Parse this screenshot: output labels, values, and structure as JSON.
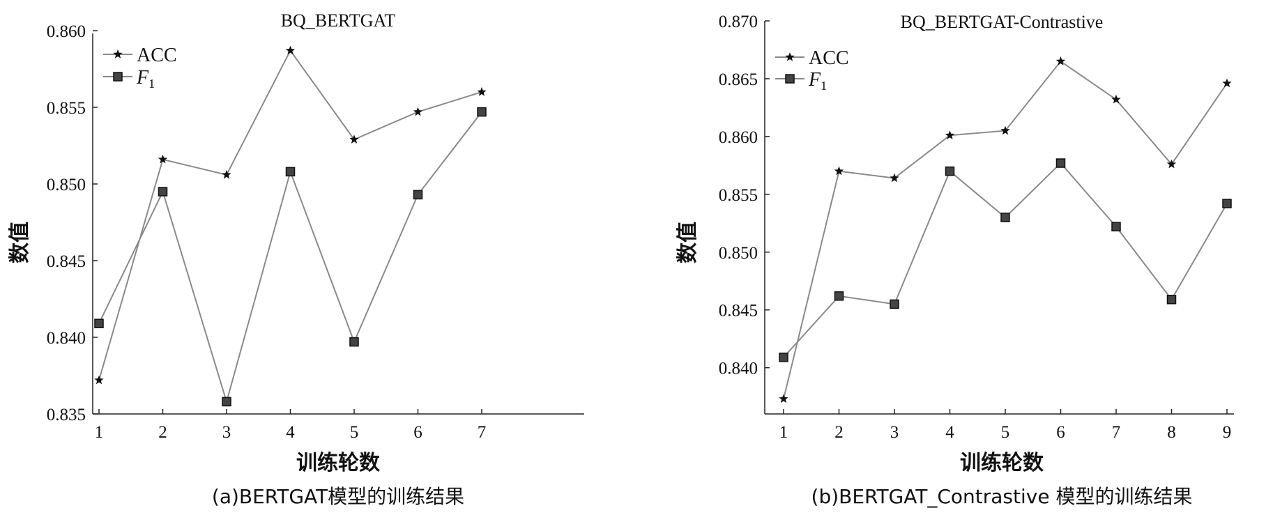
{
  "chart_data": [
    {
      "type": "line",
      "title": "BQ_BERTGAT",
      "xlabel": "训练轮数",
      "ylabel": "数值",
      "caption": "(a)BERTGAT模型的训练结果",
      "x": [
        1,
        2,
        3,
        4,
        5,
        6,
        7
      ],
      "ylim": [
        0.835,
        0.86
      ],
      "yticks": [
        "0.835",
        "0.840",
        "0.845",
        "0.850",
        "0.855",
        "0.860"
      ],
      "legend": "top-left",
      "grid": false,
      "series": [
        {
          "name": "ACC",
          "marker": "star",
          "values": [
            0.8372,
            0.8516,
            0.8506,
            0.8587,
            0.8529,
            0.8547,
            0.856
          ]
        },
        {
          "name": "F",
          "subscript": "1",
          "marker": "square",
          "values": [
            0.8409,
            0.8495,
            0.8358,
            0.8508,
            0.8397,
            0.8493,
            0.8547
          ]
        }
      ]
    },
    {
      "type": "line",
      "title": "BQ_BERTGAT-Contrastive",
      "xlabel": "训练轮数",
      "ylabel": "数值",
      "caption": "(b)BERTGAT_Contrastive 模型的训练结果",
      "x": [
        1,
        2,
        3,
        4,
        5,
        6,
        7,
        8,
        9
      ],
      "ylim": [
        0.836,
        0.87
      ],
      "yticks": [
        "0.840",
        "0.845",
        "0.850",
        "0.855",
        "0.860",
        "0.865",
        "0.870"
      ],
      "legend": "top-left",
      "grid": false,
      "series": [
        {
          "name": "ACC",
          "marker": "star",
          "values": [
            0.8373,
            0.857,
            0.8564,
            0.8601,
            0.8605,
            0.8665,
            0.8632,
            0.8576,
            0.8646
          ]
        },
        {
          "name": "F",
          "subscript": "1",
          "marker": "square",
          "values": [
            0.8409,
            0.8462,
            0.8455,
            0.857,
            0.853,
            0.8577,
            0.8522,
            0.8459,
            0.8542
          ]
        }
      ]
    }
  ]
}
